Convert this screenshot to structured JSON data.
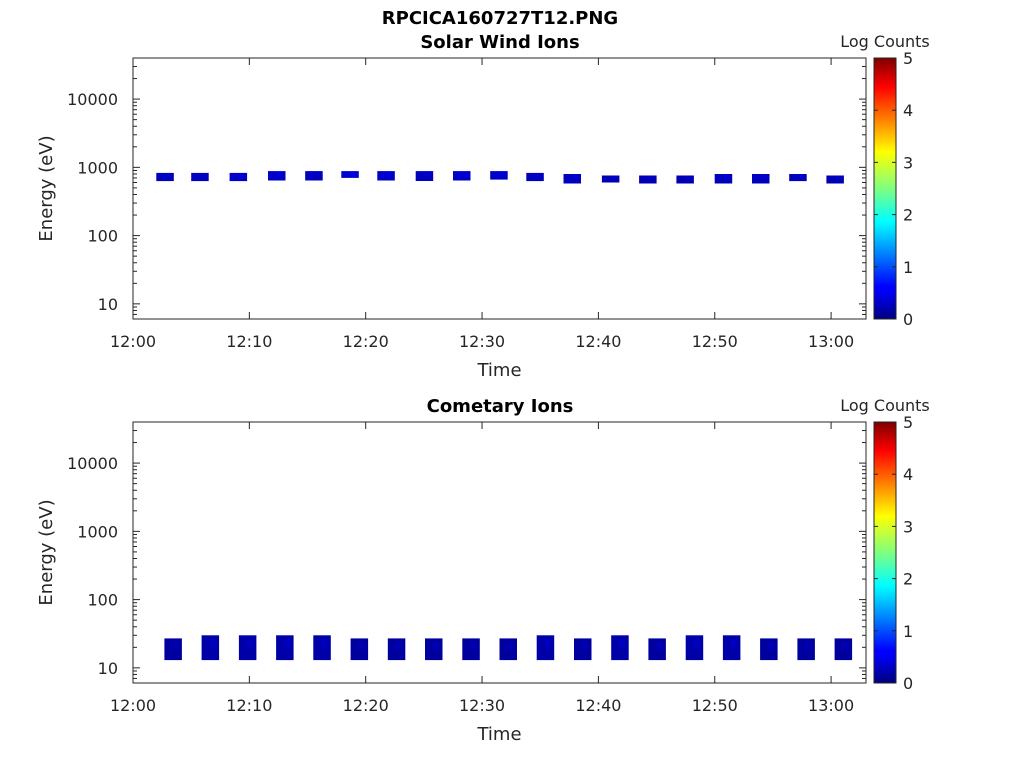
{
  "figure_title": "RPCICA160727T12.PNG",
  "chart_data": [
    {
      "type": "heatmap",
      "title": "Solar Wind Ions",
      "xlabel": "Time",
      "ylabel": "Energy (eV)",
      "y_scale": "log",
      "xlim": [
        "12:00",
        "13:03"
      ],
      "ylim": [
        6,
        40000
      ],
      "x_ticks": [
        "12:00",
        "12:10",
        "12:20",
        "12:30",
        "12:40",
        "12:50",
        "13:00"
      ],
      "y_ticks": [
        "10",
        "100",
        "1000",
        "10000"
      ],
      "grid": false,
      "colorbar": {
        "label": "Log Counts",
        "range": [
          0,
          5
        ],
        "ticks": [
          "0",
          "1",
          "2",
          "3",
          "4",
          "5"
        ],
        "colormap": "jet"
      },
      "blocks": [
        {
          "t_start": "12:02",
          "t_end": "12:03.5",
          "e_low": 630,
          "e_high": 830,
          "log_counts": 0.3
        },
        {
          "t_start": "12:05",
          "t_end": "12:06.5",
          "e_low": 630,
          "e_high": 830,
          "log_counts": 0.3
        },
        {
          "t_start": "12:08.3",
          "t_end": "12:09.8",
          "e_low": 630,
          "e_high": 830,
          "log_counts": 0.35
        },
        {
          "t_start": "12:11.6",
          "t_end": "12:13.1",
          "e_low": 640,
          "e_high": 880,
          "log_counts": 0.35
        },
        {
          "t_start": "12:14.8",
          "t_end": "12:16.3",
          "e_low": 640,
          "e_high": 880,
          "log_counts": 0.3
        },
        {
          "t_start": "12:17.9",
          "t_end": "12:19.4",
          "e_low": 700,
          "e_high": 880,
          "log_counts": 0.4
        },
        {
          "t_start": "12:21",
          "t_end": "12:22.5",
          "e_low": 640,
          "e_high": 880,
          "log_counts": 0.35
        },
        {
          "t_start": "12:24.3",
          "t_end": "12:25.8",
          "e_low": 630,
          "e_high": 880,
          "log_counts": 0.3
        },
        {
          "t_start": "12:27.5",
          "t_end": "12:29",
          "e_low": 640,
          "e_high": 880,
          "log_counts": 0.35
        },
        {
          "t_start": "12:30.7",
          "t_end": "12:32.2",
          "e_low": 660,
          "e_high": 880,
          "log_counts": 0.35
        },
        {
          "t_start": "12:33.8",
          "t_end": "12:35.3",
          "e_low": 630,
          "e_high": 830,
          "log_counts": 0.3
        },
        {
          "t_start": "12:37",
          "t_end": "12:38.5",
          "e_low": 580,
          "e_high": 800,
          "log_counts": 0.3
        },
        {
          "t_start": "12:40.3",
          "t_end": "12:41.8",
          "e_low": 600,
          "e_high": 760,
          "log_counts": 0.25
        },
        {
          "t_start": "12:43.5",
          "t_end": "12:45",
          "e_low": 580,
          "e_high": 760,
          "log_counts": 0.25
        },
        {
          "t_start": "12:46.7",
          "t_end": "12:48.2",
          "e_low": 580,
          "e_high": 760,
          "log_counts": 0.25
        },
        {
          "t_start": "12:50",
          "t_end": "12:51.5",
          "e_low": 580,
          "e_high": 800,
          "log_counts": 0.3
        },
        {
          "t_start": "12:53.2",
          "t_end": "12:54.7",
          "e_low": 580,
          "e_high": 800,
          "log_counts": 0.3
        },
        {
          "t_start": "12:56.4",
          "t_end": "12:57.9",
          "e_low": 630,
          "e_high": 800,
          "log_counts": 0.3
        },
        {
          "t_start": "12:59.6",
          "t_end": "13:01.1",
          "e_low": 580,
          "e_high": 760,
          "log_counts": 0.25
        }
      ]
    },
    {
      "type": "heatmap",
      "title": "Cometary Ions",
      "xlabel": "Time",
      "ylabel": "Energy (eV)",
      "y_scale": "log",
      "xlim": [
        "12:00",
        "13:03"
      ],
      "ylim": [
        6,
        40000
      ],
      "x_ticks": [
        "12:00",
        "12:10",
        "12:20",
        "12:30",
        "12:40",
        "12:50",
        "13:00"
      ],
      "y_ticks": [
        "10",
        "100",
        "1000",
        "10000"
      ],
      "grid": false,
      "colorbar": {
        "label": "Log Counts",
        "range": [
          0,
          5
        ],
        "ticks": [
          "0",
          "1",
          "2",
          "3",
          "4",
          "5"
        ],
        "colormap": "jet"
      },
      "blocks": [
        {
          "t_start": "12:02.7",
          "t_end": "12:04.2",
          "e_low": 13,
          "e_high": 27,
          "log_counts": 0.15
        },
        {
          "t_start": "12:05.9",
          "t_end": "12:07.4",
          "e_low": 13,
          "e_high": 30,
          "log_counts": 0.2
        },
        {
          "t_start": "12:09.1",
          "t_end": "12:10.6",
          "e_low": 13,
          "e_high": 30,
          "log_counts": 0.2
        },
        {
          "t_start": "12:12.3",
          "t_end": "12:13.8",
          "e_low": 13,
          "e_high": 30,
          "log_counts": 0.2
        },
        {
          "t_start": "12:15.5",
          "t_end": "12:17",
          "e_low": 13,
          "e_high": 30,
          "log_counts": 0.2
        },
        {
          "t_start": "12:18.7",
          "t_end": "12:20.2",
          "e_low": 13,
          "e_high": 27,
          "log_counts": 0.15
        },
        {
          "t_start": "12:21.9",
          "t_end": "12:23.4",
          "e_low": 13,
          "e_high": 27,
          "log_counts": 0.15
        },
        {
          "t_start": "12:25.1",
          "t_end": "12:26.6",
          "e_low": 13,
          "e_high": 27,
          "log_counts": 0.15
        },
        {
          "t_start": "12:28.3",
          "t_end": "12:29.8",
          "e_low": 13,
          "e_high": 27,
          "log_counts": 0.15
        },
        {
          "t_start": "12:31.5",
          "t_end": "12:33",
          "e_low": 13,
          "e_high": 27,
          "log_counts": 0.15
        },
        {
          "t_start": "12:34.7",
          "t_end": "12:36.2",
          "e_low": 13,
          "e_high": 30,
          "log_counts": 0.2
        },
        {
          "t_start": "12:37.9",
          "t_end": "12:39.4",
          "e_low": 13,
          "e_high": 27,
          "log_counts": 0.15
        },
        {
          "t_start": "12:41.1",
          "t_end": "12:42.6",
          "e_low": 13,
          "e_high": 30,
          "log_counts": 0.2
        },
        {
          "t_start": "12:44.3",
          "t_end": "12:45.8",
          "e_low": 13,
          "e_high": 27,
          "log_counts": 0.15
        },
        {
          "t_start": "12:47.5",
          "t_end": "12:49",
          "e_low": 13,
          "e_high": 30,
          "log_counts": 0.2
        },
        {
          "t_start": "12:50.7",
          "t_end": "12:52.2",
          "e_low": 13,
          "e_high": 30,
          "log_counts": 0.2
        },
        {
          "t_start": "12:53.9",
          "t_end": "12:55.4",
          "e_low": 13,
          "e_high": 27,
          "log_counts": 0.15
        },
        {
          "t_start": "12:57.1",
          "t_end": "12:58.6",
          "e_low": 13,
          "e_high": 27,
          "log_counts": 0.15
        },
        {
          "t_start": "13:00.3",
          "t_end": "13:01.8",
          "e_low": 13,
          "e_high": 27,
          "log_counts": 0.15
        }
      ]
    }
  ]
}
